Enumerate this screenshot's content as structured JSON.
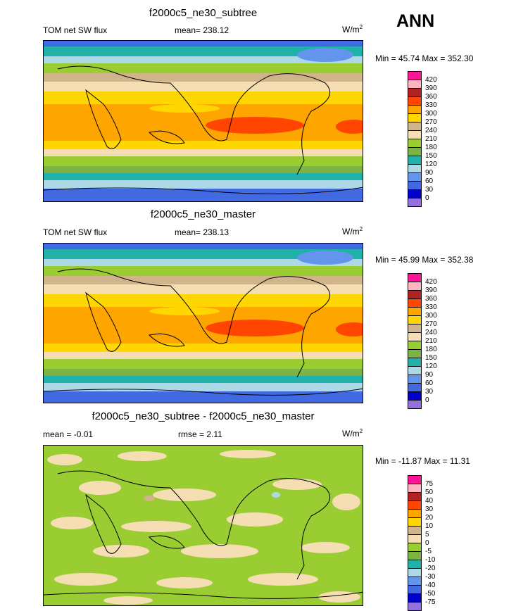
{
  "season": "ANN",
  "panels": [
    {
      "title": "f2000c5_ne30_subtree",
      "variable": "TOM net SW flux",
      "mean_label": "mean= 238.12",
      "units_base": "W/m",
      "units_exp": "2",
      "range_label": "Min =  45.74 Max = 352.30",
      "colorbar_labels": [
        "420",
        "390",
        "360",
        "330",
        "300",
        "270",
        "240",
        "210",
        "180",
        "150",
        "120",
        "90",
        "60",
        "30",
        "0"
      ],
      "colorbar_colors": [
        "#ff1493",
        "#ffb6c1",
        "#b22222",
        "#ff4500",
        "#ffa500",
        "#ffd700",
        "#d2b48c",
        "#f5deb3",
        "#9acd32",
        "#7cb342",
        "#20b2aa",
        "#add8e6",
        "#6495ed",
        "#4169e1",
        "#0000cd",
        "#9370db"
      ]
    },
    {
      "title": "f2000c5_ne30_master",
      "variable": "TOM net SW flux",
      "mean_label": "mean= 238.13",
      "units_base": "W/m",
      "units_exp": "2",
      "range_label": "Min =  45.99 Max = 352.38",
      "colorbar_labels": [
        "420",
        "390",
        "360",
        "330",
        "300",
        "270",
        "240",
        "210",
        "180",
        "150",
        "120",
        "90",
        "60",
        "30",
        "0"
      ],
      "colorbar_colors": [
        "#ff1493",
        "#ffb6c1",
        "#b22222",
        "#ff4500",
        "#ffa500",
        "#ffd700",
        "#d2b48c",
        "#f5deb3",
        "#9acd32",
        "#7cb342",
        "#20b2aa",
        "#add8e6",
        "#6495ed",
        "#4169e1",
        "#0000cd",
        "#9370db"
      ]
    },
    {
      "title": "f2000c5_ne30_subtree - f2000c5_ne30_master",
      "mean_label": "mean =  -0.01",
      "rmse_label": "rmse =   2.11",
      "units_base": "W/m",
      "units_exp": "2",
      "range_label": "Min = -11.87 Max =  11.31",
      "colorbar_labels": [
        "75",
        "50",
        "40",
        "30",
        "20",
        "10",
        "5",
        "0",
        "-5",
        "-10",
        "-20",
        "-30",
        "-40",
        "-50",
        "-75"
      ],
      "colorbar_colors": [
        "#ff1493",
        "#ffb6c1",
        "#b22222",
        "#ff4500",
        "#ffa500",
        "#ffd700",
        "#d2b48c",
        "#f5deb3",
        "#9acd32",
        "#7cb342",
        "#20b2aa",
        "#add8e6",
        "#6495ed",
        "#4169e1",
        "#0000cd",
        "#9370db"
      ]
    }
  ],
  "chart_data": [
    {
      "type": "heatmap",
      "title": "f2000c5_ne30_subtree",
      "variable": "TOM net SW flux",
      "units": "W/m2",
      "mean": 238.12,
      "min": 45.74,
      "max": 352.3,
      "levels": [
        0,
        30,
        60,
        90,
        120,
        150,
        180,
        210,
        240,
        270,
        300,
        330,
        360,
        390,
        420
      ]
    },
    {
      "type": "heatmap",
      "title": "f2000c5_ne30_master",
      "variable": "TOM net SW flux",
      "units": "W/m2",
      "mean": 238.13,
      "min": 45.99,
      "max": 352.38,
      "levels": [
        0,
        30,
        60,
        90,
        120,
        150,
        180,
        210,
        240,
        270,
        300,
        330,
        360,
        390,
        420
      ]
    },
    {
      "type": "heatmap",
      "title": "f2000c5_ne30_subtree - f2000c5_ne30_master",
      "units": "W/m2",
      "mean": -0.01,
      "rmse": 2.11,
      "min": -11.87,
      "max": 11.31,
      "levels": [
        -75,
        -50,
        -40,
        -30,
        -20,
        -10,
        -5,
        0,
        5,
        10,
        20,
        30,
        40,
        50,
        75
      ]
    }
  ]
}
